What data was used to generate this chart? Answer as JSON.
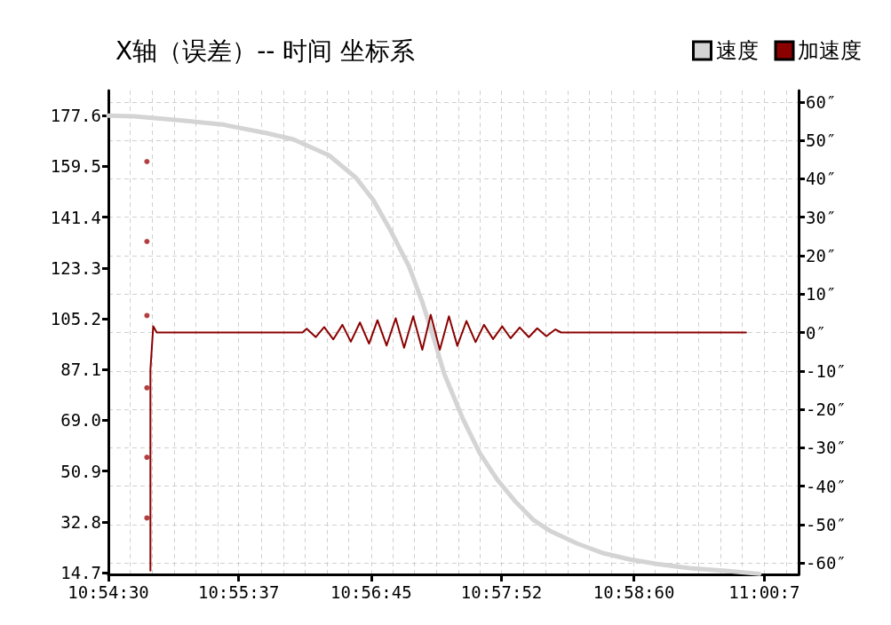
{
  "chart_data": {
    "type": "line",
    "title": "X轴（误差）-- 时间 坐标系",
    "legend": "top right",
    "grid": true,
    "marker": "none",
    "line_style": "solid",
    "xlim": [
      10.9083,
      11.0068
    ],
    "xticks": [
      {
        "value": 10.9083,
        "label": "10:54:30"
      },
      {
        "value": 10.9269,
        "label": "10:55:37"
      },
      {
        "value": 10.9458,
        "label": "10:56:45"
      },
      {
        "value": 10.9644,
        "label": "10:57:52"
      },
      {
        "value": 10.9833,
        "label": "10:58:60"
      },
      {
        "value": 11.0019,
        "label": "11:00:7"
      }
    ],
    "ylim": [
      14.1,
      186.5
    ],
    "yticks": [
      14.7,
      32.8,
      50.9,
      {
        "value": 69,
        "label": "69.0"
      },
      87.1,
      105.2,
      123.3,
      141.4,
      159.5,
      177.6
    ],
    "y2lim": [
      -63,
      63
    ],
    "y2ticks": [
      {
        "value": 60,
        "label": "60″"
      },
      {
        "value": 50,
        "label": "50″"
      },
      {
        "value": 40,
        "label": "40″"
      },
      {
        "value": 30,
        "label": "30″"
      },
      {
        "value": 20,
        "label": "20″"
      },
      {
        "value": 10,
        "label": "10″"
      },
      {
        "value": 0,
        "label": "0″"
      },
      {
        "value": -10,
        "label": "-10″"
      },
      {
        "value": -20,
        "label": "-20″"
      },
      {
        "value": -30,
        "label": "-30″"
      },
      {
        "value": -40,
        "label": "-40″"
      },
      {
        "value": -50,
        "label": "-50″"
      },
      {
        "value": -60,
        "label": "-60″"
      }
    ],
    "series": [
      {
        "name": "速度",
        "color": "#d4d4d4",
        "x": [
          10.9083,
          10.9119,
          10.9182,
          10.9246,
          10.9309,
          10.9347,
          10.9398,
          10.9436,
          10.9461,
          10.9486,
          10.9512,
          10.9531,
          10.9549,
          10.9562,
          10.9588,
          10.9613,
          10.9638,
          10.9664,
          10.9689,
          10.9714,
          10.9752,
          10.979,
          10.9828,
          10.9866,
          10.9917,
          10.9968,
          11.0012
        ],
        "values": [
          177.6,
          177.3,
          176.0,
          174.4,
          171.3,
          169.1,
          163.4,
          155.5,
          147.5,
          136.5,
          123.8,
          111.1,
          96.9,
          85.8,
          70.0,
          57.3,
          47.8,
          40.0,
          33.6,
          29.5,
          25.1,
          21.6,
          19.4,
          17.8,
          16.2,
          15.3,
          14.3
        ]
      },
      {
        "name": "加速度",
        "color": "#8b0000",
        "axis": "y2",
        "x": [
          10.9143,
          10.9143,
          10.9147,
          10.9152,
          10.936,
          10.9366,
          10.9379,
          10.9391,
          10.9404,
          10.9417,
          10.9429,
          10.9442,
          10.9455,
          10.9467,
          10.948,
          10.9493,
          10.9505,
          10.9518,
          10.9531,
          10.9543,
          10.9556,
          10.9569,
          10.9581,
          10.9594,
          10.9607,
          10.9619,
          10.9632,
          10.9645,
          10.9657,
          10.967,
          10.9683,
          10.9695,
          10.9708,
          10.9721,
          10.9729,
          10.9993
        ],
        "values": [
          -62,
          -9.7,
          1.6,
          0,
          0,
          1,
          -1.2,
          1.4,
          -1.8,
          2,
          -2.4,
          2.6,
          -2.9,
          3.2,
          -3.4,
          3.7,
          -4,
          4.2,
          -4.5,
          4.6,
          -4.5,
          4.2,
          -3.5,
          3,
          -2.5,
          2,
          -1.7,
          1.6,
          -1.5,
          1.3,
          -1.2,
          1.1,
          -1,
          0.8,
          0,
          0
        ]
      },
      {
        "type": "scatter",
        "marker": "circle",
        "color": "#a01010",
        "axis": "y2",
        "x": [
          10.9138,
          10.9138,
          10.9138,
          10.9138,
          10.9138,
          10.9138
        ],
        "values": [
          44.5,
          23.7,
          4.4,
          -14.4,
          -32.5,
          -48.3
        ]
      }
    ]
  }
}
